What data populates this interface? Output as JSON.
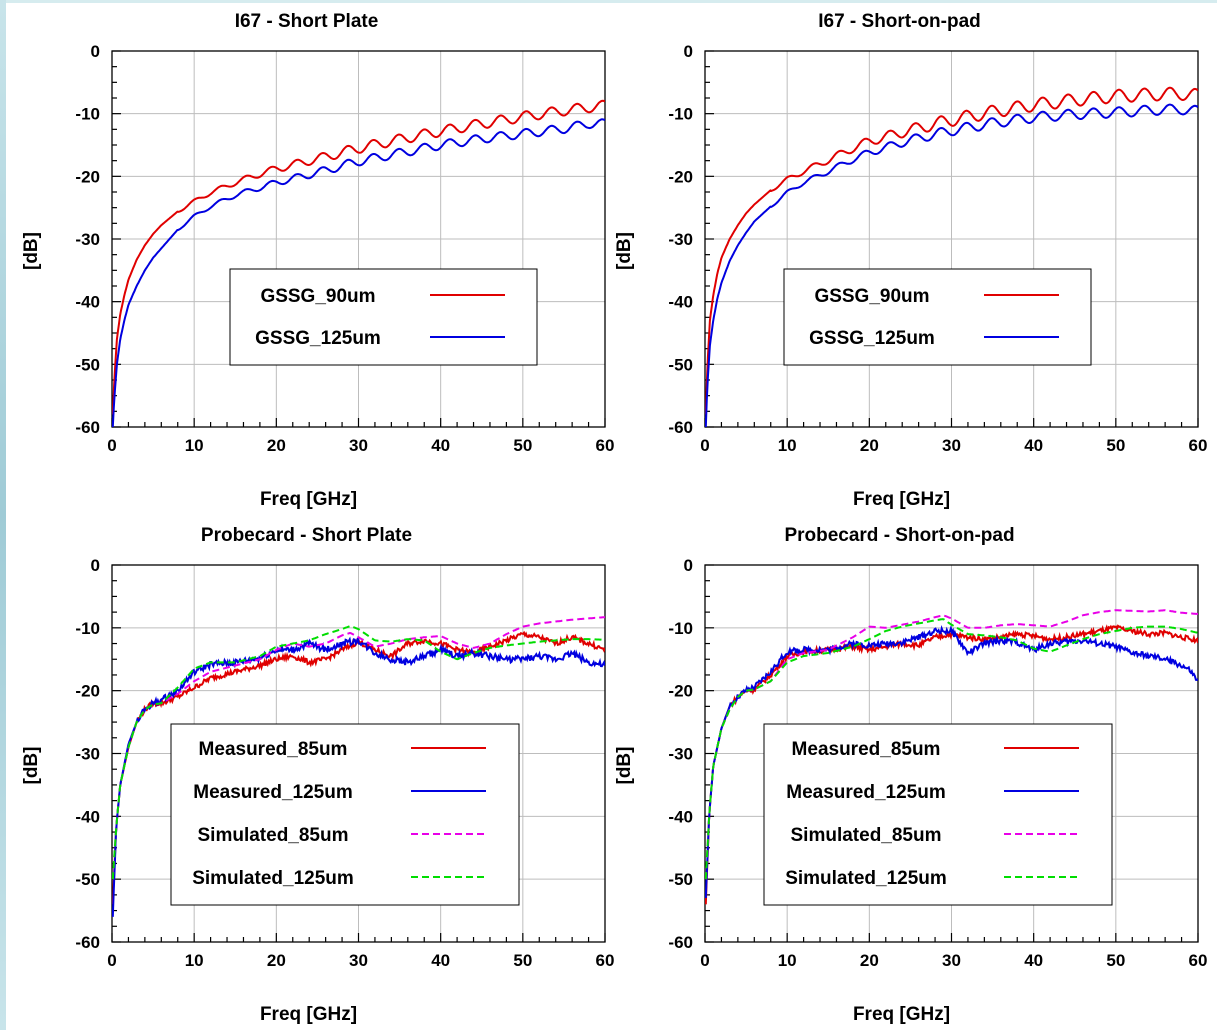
{
  "chart_data": [
    {
      "type": "line",
      "title": "I67 - Short Plate",
      "xlabel": "Freq [GHz]",
      "ylabel": "[dB]",
      "xlim": [
        0,
        60
      ],
      "ylim": [
        -60,
        0
      ],
      "xticks": [
        "0",
        "10",
        "20",
        "30",
        "40",
        "50",
        "60"
      ],
      "yticks": [
        "0",
        "-10",
        "-20",
        "-30",
        "-40",
        "-50",
        "-60"
      ],
      "grid": true,
      "legend_position": "center-right",
      "series": [
        {
          "name": "GSSG_90um",
          "color": "#e00000",
          "dash": "solid",
          "x": [
            0.1,
            0.3,
            0.6,
            1,
            1.5,
            2,
            3,
            4,
            5,
            6,
            8,
            10,
            12,
            15,
            18,
            20,
            25,
            30,
            35,
            40,
            45,
            50,
            55,
            58,
            60
          ],
          "y": [
            -58,
            -52,
            -46,
            -42,
            -39,
            -36.5,
            -33.3,
            -31,
            -29.2,
            -27.8,
            -25.6,
            -24,
            -22.6,
            -21,
            -19.6,
            -18.8,
            -17.2,
            -15.5,
            -14.1,
            -12.8,
            -11.6,
            -10.5,
            -9.5,
            -9,
            -8.7
          ],
          "ripple": 0.8
        },
        {
          "name": "GSSG_125um",
          "color": "#0000e0",
          "dash": "solid",
          "x": [
            0.1,
            0.3,
            0.6,
            1,
            1.5,
            2,
            3,
            4,
            5,
            6,
            8,
            10,
            12,
            15,
            18,
            20,
            25,
            30,
            35,
            40,
            45,
            50,
            55,
            58,
            60
          ],
          "y": [
            -60,
            -55,
            -50,
            -46,
            -43,
            -40.5,
            -37.5,
            -35,
            -33,
            -31.5,
            -28.5,
            -26.4,
            -24.8,
            -23,
            -21.8,
            -21,
            -19.4,
            -17.6,
            -16.3,
            -15,
            -14,
            -13.2,
            -12.4,
            -11.6,
            -11.6
          ],
          "ripple": 0.7
        }
      ]
    },
    {
      "type": "line",
      "title": "I67 - Short-on-pad",
      "xlabel": "Freq [GHz]",
      "ylabel": "[dB]",
      "xlim": [
        0,
        60
      ],
      "ylim": [
        -60,
        0
      ],
      "xticks": [
        "0",
        "10",
        "20",
        "30",
        "40",
        "50",
        "60"
      ],
      "yticks": [
        "0",
        "-10",
        "-20",
        "-30",
        "-40",
        "-50",
        "-60"
      ],
      "grid": true,
      "legend_position": "center-right",
      "series": [
        {
          "name": "GSSG_90um",
          "color": "#e00000",
          "dash": "solid",
          "x": [
            0.1,
            0.3,
            0.6,
            1,
            1.5,
            2,
            3,
            4,
            5,
            6,
            8,
            10,
            12,
            15,
            18,
            20,
            25,
            30,
            35,
            40,
            45,
            50,
            55,
            58,
            60
          ],
          "y": [
            -58,
            -50,
            -43,
            -39,
            -35.5,
            -33,
            -30,
            -27.8,
            -25.9,
            -24.5,
            -22.2,
            -20.5,
            -19.2,
            -17.4,
            -15.5,
            -14.4,
            -12.6,
            -11,
            -9.7,
            -8.6,
            -7.8,
            -7.2,
            -6.9,
            -6.8,
            -7.1
          ],
          "ripple": 1.0
        },
        {
          "name": "GSSG_125um",
          "color": "#0000e0",
          "dash": "solid",
          "x": [
            0.1,
            0.3,
            0.6,
            1,
            1.5,
            2,
            3,
            4,
            5,
            6,
            8,
            10,
            12,
            15,
            18,
            20,
            25,
            30,
            35,
            40,
            45,
            50,
            55,
            58,
            60
          ],
          "y": [
            -60,
            -53,
            -47,
            -43,
            -39.5,
            -37,
            -33.5,
            -31,
            -29,
            -27.2,
            -24.8,
            -22.6,
            -21,
            -19.2,
            -17.3,
            -16.2,
            -14.2,
            -12.7,
            -11.5,
            -10.6,
            -10.1,
            -9.8,
            -9.4,
            -9.3,
            -9.6
          ],
          "ripple": 0.8
        }
      ]
    },
    {
      "type": "line",
      "title": "Probecard - Short Plate",
      "xlabel": "Freq [GHz]",
      "ylabel": "[dB]",
      "xlim": [
        0,
        60
      ],
      "ylim": [
        -60,
        0
      ],
      "xticks": [
        "0",
        "10",
        "20",
        "30",
        "40",
        "50",
        "60"
      ],
      "yticks": [
        "0",
        "-10",
        "-20",
        "-30",
        "-40",
        "-50",
        "-60"
      ],
      "grid": true,
      "legend_position": "lower-right",
      "series": [
        {
          "name": "Measured_85um",
          "color": "#e00000",
          "dash": "solid",
          "x": [
            0.1,
            0.5,
            1,
            2,
            3,
            4,
            5,
            6,
            8,
            10,
            12,
            15,
            18,
            20,
            22,
            24,
            26,
            28,
            30,
            32,
            34,
            36,
            38,
            40,
            42,
            44,
            46,
            48,
            50,
            52,
            54,
            56,
            58,
            60
          ],
          "y": [
            -54,
            -42,
            -35,
            -29,
            -25,
            -23,
            -22,
            -22,
            -21,
            -19.5,
            -18,
            -17,
            -16,
            -15,
            -14.5,
            -15.5,
            -15,
            -13.5,
            -12.2,
            -13.5,
            -14.5,
            -12.5,
            -12,
            -12.5,
            -13.5,
            -14,
            -13,
            -12,
            -11,
            -11.5,
            -12.5,
            -11.5,
            -12.5,
            -13.5
          ],
          "noise": 0.8
        },
        {
          "name": "Measured_125um",
          "color": "#0000e0",
          "dash": "solid",
          "x": [
            0.1,
            0.5,
            1,
            2,
            3,
            4,
            5,
            6,
            8,
            10,
            12,
            15,
            18,
            20,
            22,
            24,
            26,
            28,
            30,
            32,
            34,
            36,
            38,
            40,
            42,
            44,
            46,
            48,
            50,
            52,
            54,
            56,
            58,
            60
          ],
          "y": [
            -56,
            -42,
            -35,
            -28.5,
            -25,
            -23,
            -22,
            -21.5,
            -20,
            -17,
            -15.8,
            -15.5,
            -14.8,
            -13.5,
            -13.5,
            -12.5,
            -13.5,
            -12.5,
            -12,
            -14,
            -15,
            -15.5,
            -14.5,
            -13.5,
            -14.5,
            -14,
            -14.5,
            -15,
            -15,
            -14.5,
            -15,
            -14,
            -15.5,
            -16
          ],
          "noise": 1.0
        },
        {
          "name": "Simulated_85um",
          "color": "#e800e8",
          "dash": "dashed",
          "x": [
            0.1,
            0.5,
            1,
            2,
            3,
            4,
            5,
            6,
            8,
            10,
            12,
            15,
            18,
            20,
            22,
            24,
            26,
            28,
            29,
            30,
            32,
            34,
            36,
            38,
            40,
            42,
            44,
            46,
            48,
            50,
            52,
            54,
            56,
            58,
            60
          ],
          "y": [
            -50,
            -42,
            -35,
            -29,
            -25,
            -23,
            -22.2,
            -22,
            -20.5,
            -18.5,
            -17,
            -16,
            -15,
            -13.5,
            -12.5,
            -13,
            -12.5,
            -11.2,
            -10.8,
            -11.5,
            -13,
            -12.5,
            -11.8,
            -11.5,
            -11.3,
            -12.5,
            -13.2,
            -12.5,
            -11,
            -9.8,
            -9.3,
            -9,
            -8.7,
            -8.5,
            -8.3
          ],
          "noise": 0
        },
        {
          "name": "Simulated_125um",
          "color": "#00dd00",
          "dash": "dashed",
          "x": [
            0.1,
            0.5,
            1,
            2,
            3,
            4,
            5,
            6,
            8,
            10,
            12,
            15,
            18,
            20,
            22,
            24,
            26,
            28,
            29,
            30,
            32,
            34,
            36,
            38,
            40,
            42,
            44,
            46,
            48,
            50,
            52,
            54,
            56,
            58,
            60
          ],
          "y": [
            -50,
            -42,
            -35,
            -29,
            -25,
            -23,
            -22.2,
            -22,
            -19.5,
            -16.5,
            -15.5,
            -15.5,
            -14.5,
            -13,
            -12.5,
            -12,
            -11,
            -10.2,
            -9.7,
            -10.2,
            -12,
            -12.2,
            -11.8,
            -12,
            -13.8,
            -15,
            -14,
            -13.2,
            -12.8,
            -12.5,
            -12.2,
            -12,
            -11.8,
            -11.8,
            -11.9
          ],
          "noise": 0
        }
      ]
    },
    {
      "type": "line",
      "title": "Probecard - Short-on-pad",
      "xlabel": "Freq [GHz]",
      "ylabel": "[dB]",
      "xlim": [
        0,
        60
      ],
      "ylim": [
        -60,
        0
      ],
      "xticks": [
        "0",
        "10",
        "20",
        "30",
        "40",
        "50",
        "60"
      ],
      "yticks": [
        "0",
        "-10",
        "-20",
        "-30",
        "-40",
        "-50",
        "-60"
      ],
      "grid": true,
      "legend_position": "lower-right",
      "series": [
        {
          "name": "Measured_85um",
          "color": "#e00000",
          "dash": "solid",
          "x": [
            0.1,
            0.5,
            1,
            2,
            3,
            4,
            5,
            6,
            8,
            10,
            12,
            15,
            18,
            20,
            22,
            24,
            26,
            28,
            30,
            32,
            34,
            36,
            38,
            40,
            42,
            44,
            46,
            48,
            50,
            52,
            54,
            56,
            58,
            60
          ],
          "y": [
            -54,
            -40,
            -32,
            -26,
            -22.5,
            -21,
            -20,
            -19.8,
            -17.5,
            -14.5,
            -13.8,
            -13.5,
            -13,
            -13.5,
            -13,
            -12.5,
            -12.8,
            -11.5,
            -11,
            -11.5,
            -11.8,
            -11.5,
            -11,
            -11.3,
            -11.8,
            -11.5,
            -11,
            -10.5,
            -10,
            -10.5,
            -11,
            -10.8,
            -11.5,
            -12
          ],
          "noise": 0.8
        },
        {
          "name": "Measured_125um",
          "color": "#0000e0",
          "dash": "solid",
          "x": [
            0.1,
            0.5,
            1,
            2,
            3,
            4,
            5,
            6,
            8,
            10,
            12,
            15,
            18,
            20,
            22,
            24,
            26,
            28,
            30,
            32,
            34,
            36,
            38,
            40,
            42,
            44,
            46,
            48,
            50,
            52,
            54,
            56,
            58,
            59,
            60
          ],
          "y": [
            -53,
            -40,
            -32,
            -26,
            -22.5,
            -21,
            -20,
            -19.5,
            -17,
            -13.8,
            -13.5,
            -13.5,
            -12.5,
            -12.8,
            -12.5,
            -12.3,
            -11.5,
            -10.5,
            -10.5,
            -14,
            -12.5,
            -12,
            -12.3,
            -13.5,
            -12.5,
            -12.2,
            -12,
            -12.5,
            -13,
            -14,
            -14.5,
            -15,
            -16,
            -16.8,
            -18.5
          ],
          "noise": 0.9
        },
        {
          "name": "Simulated_85um",
          "color": "#e800e8",
          "dash": "dashed",
          "x": [
            0.1,
            0.5,
            1,
            2,
            3,
            4,
            5,
            6,
            8,
            10,
            12,
            15,
            18,
            20,
            22,
            24,
            26,
            28,
            29,
            30,
            32,
            34,
            36,
            38,
            40,
            42,
            44,
            46,
            48,
            50,
            52,
            54,
            56,
            58,
            60
          ],
          "y": [
            -50,
            -40,
            -32,
            -26,
            -23,
            -21,
            -20,
            -19.8,
            -18.5,
            -15,
            -14,
            -13.5,
            -11.5,
            -9.8,
            -10,
            -9.5,
            -9,
            -8.3,
            -8,
            -8.5,
            -10,
            -10,
            -9.6,
            -9.4,
            -9.6,
            -9.8,
            -9,
            -8,
            -7.5,
            -7.2,
            -7.3,
            -7.4,
            -7.2,
            -7.6,
            -7.8
          ],
          "noise": 0
        },
        {
          "name": "Simulated_125um",
          "color": "#00dd00",
          "dash": "dashed",
          "x": [
            0.1,
            0.5,
            1,
            2,
            3,
            4,
            5,
            6,
            8,
            10,
            12,
            15,
            18,
            20,
            22,
            24,
            26,
            28,
            29,
            30,
            32,
            34,
            36,
            38,
            40,
            42,
            44,
            46,
            48,
            50,
            52,
            54,
            56,
            58,
            60
          ],
          "y": [
            -50,
            -40,
            -32,
            -26,
            -23,
            -21,
            -20,
            -19.8,
            -18.5,
            -15.5,
            -14.5,
            -14,
            -13,
            -11.8,
            -10.5,
            -9.8,
            -9.3,
            -8.8,
            -8.6,
            -9.5,
            -11,
            -11.2,
            -11.5,
            -12,
            -13.3,
            -13.8,
            -12.8,
            -11.8,
            -11,
            -10.5,
            -10,
            -9.8,
            -9.8,
            -10.2,
            -10.8
          ],
          "noise": 0
        }
      ]
    }
  ]
}
